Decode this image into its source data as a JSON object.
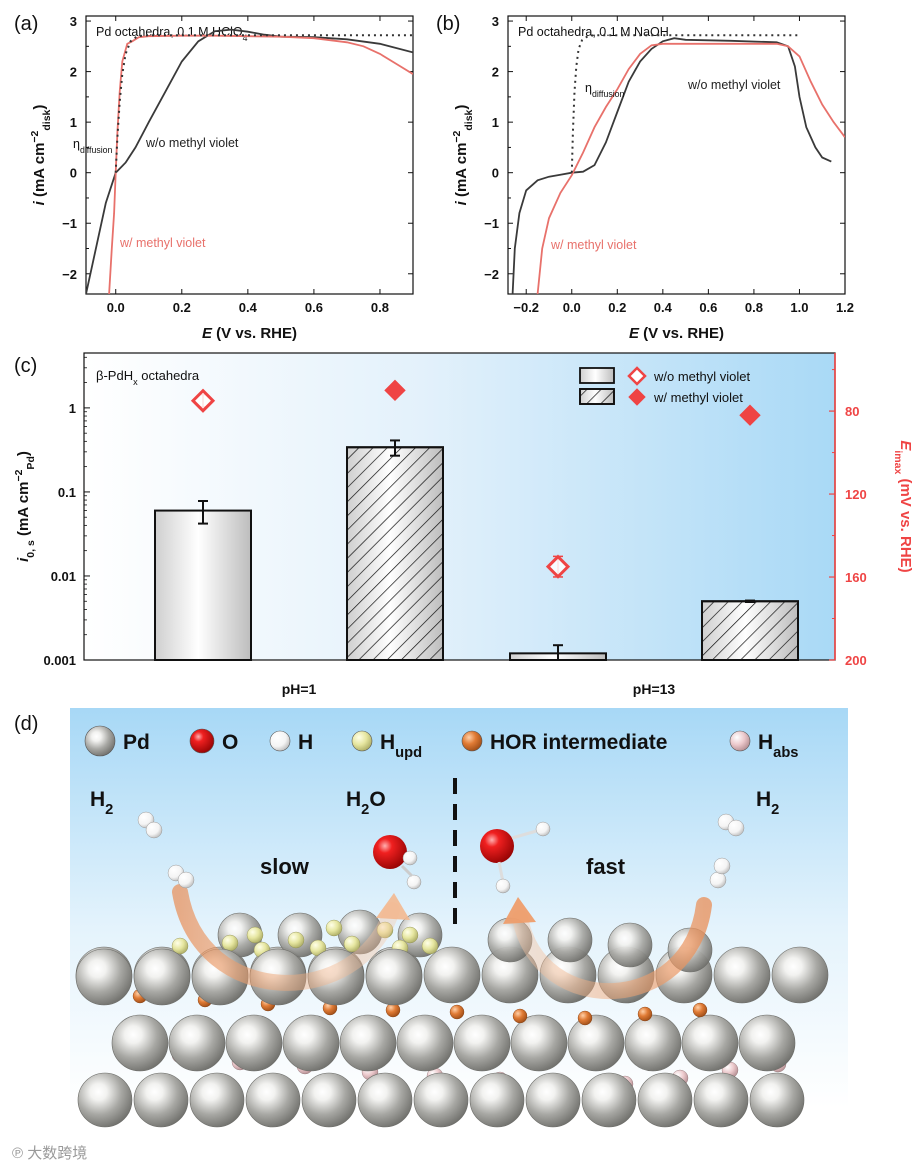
{
  "colors": {
    "gray_curve": "#3a3a3a",
    "red_curve": "#e8716b",
    "red_marker": "#ef4444",
    "diffusion": "#333333",
    "sky_top": "#a7d8f6",
    "pd_sphere": "#9a9a96",
    "o_atom": "#e01818",
    "upd": "#e4e49a",
    "hor_int": "#e07b35",
    "habs": "#e8c5c8"
  },
  "chart_data": [
    {
      "id": "a",
      "type": "line",
      "panel_label": "(a)",
      "title": "Pd octahedra, 0.1 M HClO",
      "title_sub": "4",
      "xlabel": "E",
      "xlabel_rest": " (V vs. RHE)",
      "ylabel": "i",
      "ylabel_rest": " (mA cm",
      "ylabel_sup": "−2",
      "ylabel_sub": "disk",
      "xlim": [
        -0.09,
        0.9
      ],
      "ylim": [
        -2.4,
        3.1
      ],
      "xticks": [
        0.0,
        0.2,
        0.4,
        0.6,
        0.8
      ],
      "xtick_labels": [
        "0.0",
        "0.2",
        "0.4",
        "0.6",
        "0.8"
      ],
      "yticks": [
        -2,
        -1,
        0,
        1,
        2,
        3
      ],
      "ytick_labels": [
        "−2",
        "−1",
        "0",
        "1",
        "2",
        "3"
      ],
      "series": [
        {
          "name": "w/o methyl violet",
          "color": "#3a3a3a",
          "points": [
            [
              -0.09,
              -2.4
            ],
            [
              -0.07,
              -1.8
            ],
            [
              -0.05,
              -1.2
            ],
            [
              -0.03,
              -0.6
            ],
            [
              -0.01,
              -0.2
            ],
            [
              0.0,
              0.0
            ],
            [
              0.03,
              0.2
            ],
            [
              0.06,
              0.5
            ],
            [
              0.1,
              1.0
            ],
            [
              0.15,
              1.6
            ],
            [
              0.2,
              2.2
            ],
            [
              0.25,
              2.6
            ],
            [
              0.3,
              2.8
            ],
            [
              0.35,
              2.83
            ],
            [
              0.4,
              2.79
            ],
            [
              0.45,
              2.73
            ],
            [
              0.5,
              2.69
            ],
            [
              0.6,
              2.68
            ],
            [
              0.7,
              2.64
            ],
            [
              0.8,
              2.55
            ],
            [
              0.9,
              2.38
            ]
          ]
        },
        {
          "name": "w/ methyl violet",
          "color": "#e8716b",
          "points": [
            [
              -0.02,
              -2.4
            ],
            [
              -0.012,
              -1.5
            ],
            [
              -0.005,
              -0.8
            ],
            [
              0.0,
              0.0
            ],
            [
              0.005,
              0.8
            ],
            [
              0.012,
              1.6
            ],
            [
              0.02,
              2.2
            ],
            [
              0.035,
              2.55
            ],
            [
              0.05,
              2.6
            ],
            [
              0.07,
              2.68
            ],
            [
              0.1,
              2.7
            ],
            [
              0.2,
              2.71
            ],
            [
              0.3,
              2.71
            ],
            [
              0.4,
              2.7
            ],
            [
              0.5,
              2.69
            ],
            [
              0.6,
              2.66
            ],
            [
              0.7,
              2.58
            ],
            [
              0.75,
              2.5
            ],
            [
              0.8,
              2.35
            ],
            [
              0.85,
              2.15
            ],
            [
              0.9,
              1.95
            ]
          ]
        },
        {
          "name": "diffusion limit",
          "color": "#333333",
          "dashed": true,
          "points": [
            [
              0.0,
              0.0
            ],
            [
              0.005,
              0.7
            ],
            [
              0.012,
              1.4
            ],
            [
              0.02,
              1.95
            ],
            [
              0.03,
              2.35
            ],
            [
              0.045,
              2.6
            ],
            [
              0.065,
              2.7
            ],
            [
              0.1,
              2.72
            ],
            [
              0.9,
              2.72
            ]
          ]
        }
      ],
      "annotations": [
        {
          "id": "eta",
          "text": "η",
          "sub": "diffusion"
        },
        {
          "id": "wo",
          "text": "w/o methyl violet"
        },
        {
          "id": "w",
          "text": "w/ methyl violet"
        }
      ]
    },
    {
      "id": "b",
      "type": "line",
      "panel_label": "(b)",
      "title": "Pd octahedra, 0.1 M NaOH",
      "xlabel": "E",
      "xlabel_rest": " (V vs. RHE)",
      "ylabel": "i",
      "ylabel_rest": " (mA cm",
      "ylabel_sup": "−2",
      "ylabel_sub": "disk",
      "xlim": [
        -0.28,
        1.2
      ],
      "ylim": [
        -2.4,
        3.1
      ],
      "xticks": [
        -0.2,
        0.0,
        0.2,
        0.4,
        0.6,
        0.8,
        1.0,
        1.2
      ],
      "xtick_labels": [
        "−0.2",
        "0.0",
        "0.2",
        "0.4",
        "0.6",
        "0.8",
        "1.0",
        "1.2"
      ],
      "yticks": [
        -2,
        -1,
        0,
        1,
        2,
        3
      ],
      "ytick_labels": [
        "−2",
        "−1",
        "0",
        "1",
        "2",
        "3"
      ],
      "series": [
        {
          "name": "w/o methyl violet",
          "color": "#3a3a3a",
          "points": [
            [
              -0.26,
              -2.4
            ],
            [
              -0.25,
              -1.5
            ],
            [
              -0.23,
              -0.8
            ],
            [
              -0.2,
              -0.35
            ],
            [
              -0.15,
              -0.15
            ],
            [
              -0.1,
              -0.08
            ],
            [
              -0.05,
              -0.04
            ],
            [
              0.0,
              0.0
            ],
            [
              0.05,
              0.02
            ],
            [
              0.1,
              0.15
            ],
            [
              0.15,
              0.6
            ],
            [
              0.2,
              1.2
            ],
            [
              0.25,
              1.8
            ],
            [
              0.3,
              2.2
            ],
            [
              0.35,
              2.45
            ],
            [
              0.4,
              2.6
            ],
            [
              0.45,
              2.66
            ],
            [
              0.5,
              2.63
            ],
            [
              0.7,
              2.61
            ],
            [
              0.9,
              2.58
            ],
            [
              0.95,
              2.5
            ],
            [
              0.98,
              2.1
            ],
            [
              1.0,
              1.5
            ],
            [
              1.03,
              0.9
            ],
            [
              1.07,
              0.5
            ],
            [
              1.1,
              0.3
            ],
            [
              1.14,
              0.22
            ]
          ]
        },
        {
          "name": "w/ methyl violet",
          "color": "#e8716b",
          "points": [
            [
              -0.15,
              -2.4
            ],
            [
              -0.13,
              -1.5
            ],
            [
              -0.1,
              -0.9
            ],
            [
              -0.05,
              -0.4
            ],
            [
              0.0,
              -0.05
            ],
            [
              0.05,
              0.4
            ],
            [
              0.1,
              0.9
            ],
            [
              0.15,
              1.3
            ],
            [
              0.2,
              1.65
            ],
            [
              0.25,
              2.05
            ],
            [
              0.3,
              2.35
            ],
            [
              0.35,
              2.52
            ],
            [
              0.4,
              2.55
            ],
            [
              0.6,
              2.55
            ],
            [
              0.8,
              2.55
            ],
            [
              0.9,
              2.55
            ],
            [
              0.95,
              2.5
            ],
            [
              1.0,
              2.3
            ],
            [
              1.05,
              1.8
            ],
            [
              1.1,
              1.35
            ],
            [
              1.15,
              1.0
            ],
            [
              1.2,
              0.7
            ]
          ]
        },
        {
          "name": "diffusion limit",
          "color": "#333333",
          "dashed": true,
          "points": [
            [
              0.0,
              0.0
            ],
            [
              0.005,
              0.8
            ],
            [
              0.012,
              1.6
            ],
            [
              0.02,
              2.1
            ],
            [
              0.03,
              2.45
            ],
            [
              0.045,
              2.62
            ],
            [
              0.07,
              2.7
            ],
            [
              0.1,
              2.72
            ],
            [
              1.0,
              2.72
            ]
          ]
        }
      ],
      "annotations": [
        {
          "id": "eta",
          "text": "η",
          "sub": "diffusion"
        },
        {
          "id": "wo",
          "text": "w/o methyl violet"
        },
        {
          "id": "w",
          "text": "w/ methyl violet"
        }
      ]
    },
    {
      "id": "c",
      "type": "bar",
      "panel_label": "(c)",
      "title": "β-PdH",
      "title_sub": "x",
      "title_rest": " octahedra",
      "categories": [
        "pH=1",
        "pH=13"
      ],
      "series": [
        {
          "name": "w/o methyl violet",
          "values": [
            0.06,
            0.0012
          ],
          "errors": [
            0.018,
            0.0003
          ],
          "hatch": false
        },
        {
          "name": "w/ methyl violet",
          "values": [
            0.34,
            0.005
          ],
          "errors": [
            0.07,
            0.0001
          ],
          "hatch": true
        }
      ],
      "ylabel": "i",
      "ylabel_sub": "0, s",
      "ylabel_rest": " (mA cm",
      "ylabel_sup": "−2",
      "ylabel_sub2": "Pd",
      "yscale": "log",
      "ylim": [
        0.001,
        4.5
      ],
      "yticks": [
        0.001,
        0.01,
        0.1,
        1
      ],
      "ytick_labels": [
        "0.001",
        "0.01",
        "0.1",
        "1"
      ],
      "y2label": "E",
      "y2label_sub": "imax",
      "y2label_rest": " (mV vs. RHE)",
      "y2lim": [
        200,
        52
      ],
      "y2ticks": [
        80,
        120,
        160,
        200
      ],
      "y2tick_labels": [
        "80",
        "120",
        "160",
        "200"
      ],
      "markers": [
        {
          "series": "w/o methyl violet",
          "category": "pH=1",
          "value": 75,
          "error": 2,
          "filled": false
        },
        {
          "series": "w/ methyl violet",
          "category": "pH=1",
          "value": 70,
          "error": 0,
          "filled": true
        },
        {
          "series": "w/o methyl violet",
          "category": "pH=13",
          "value": 155,
          "error": 4,
          "filled": false
        },
        {
          "series": "w/ methyl violet",
          "category": "pH=13",
          "value": 82,
          "error": 0,
          "filled": true
        }
      ],
      "legend": [
        {
          "text": "w/o methyl violet"
        },
        {
          "text": "w/ methyl violet"
        }
      ]
    }
  ],
  "panel_d": {
    "label": "(d)",
    "legend": [
      {
        "id": "pd",
        "text": "Pd"
      },
      {
        "id": "o",
        "text": "O"
      },
      {
        "id": "h",
        "text": "H"
      },
      {
        "id": "hupd",
        "text": "H",
        "sub": "upd"
      },
      {
        "id": "hor",
        "text": "HOR intermediate"
      },
      {
        "id": "habs",
        "text": "H",
        "sub": "abs"
      }
    ],
    "h2_left": "H",
    "h2_left_sub": "2",
    "h2o": "H",
    "h2o_sub": "2",
    "h2o_rest": "O",
    "slow": "slow",
    "fast": "fast",
    "h2_right": "H",
    "h2_right_sub": "2"
  }
}
